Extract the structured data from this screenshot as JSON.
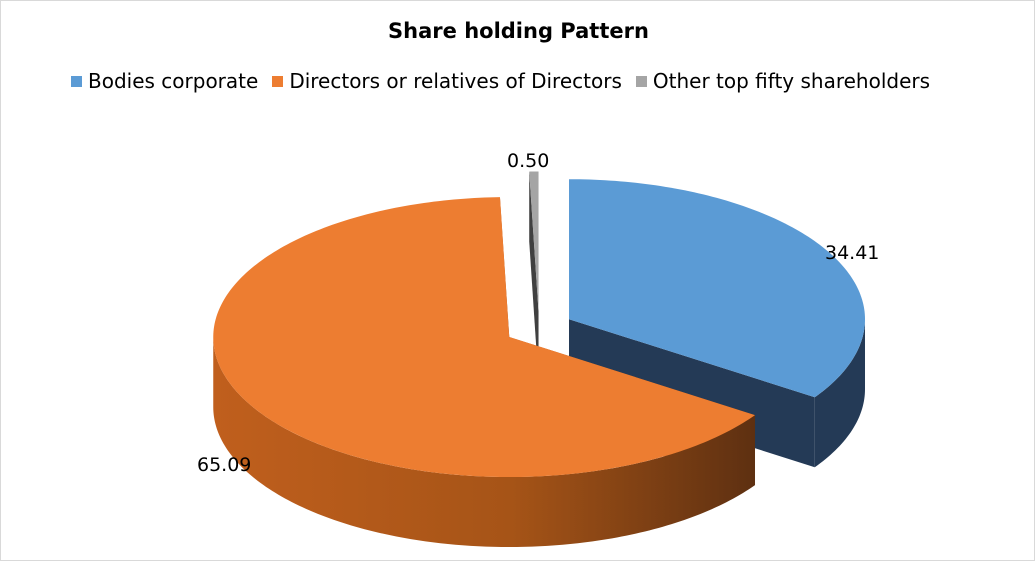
{
  "chart_data": {
    "type": "pie",
    "title": "Share holding Pattern",
    "labels": [
      "Bodies corporate",
      "Directors or relatives of Directors",
      "Other top fifty shareholders"
    ],
    "values": [
      34.41,
      65.09,
      0.5
    ],
    "data_labels": [
      "34.41",
      "65.09",
      "0.50"
    ],
    "colors": [
      "#5b9bd5",
      "#ed7d31",
      "#a5a5a5"
    ],
    "style": "3d-exploded",
    "legend_position": "top"
  }
}
